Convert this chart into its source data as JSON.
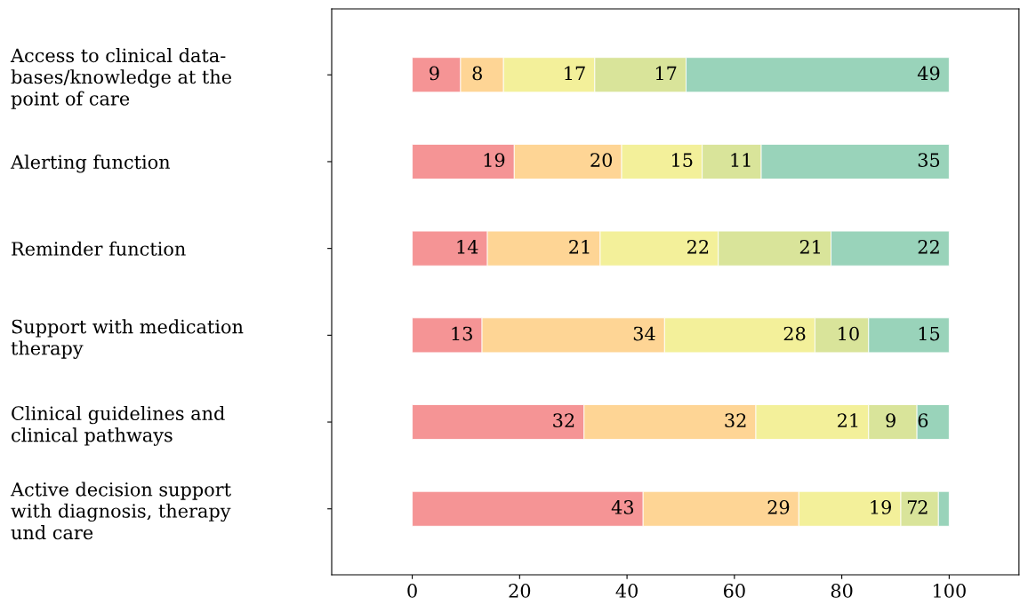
{
  "chart_data": {
    "type": "bar",
    "orientation": "horizontal",
    "stacked": true,
    "data_labels": true,
    "grid": false,
    "categories": [
      "Access to clinical data-\nbases/knowledge at the\npoint of care",
      "Alerting function",
      "Reminder function",
      "Support with medication\ntherapy",
      "Clinical guidelines and\nclinical pathways",
      "Active decision support\nwith diagnosis, therapy\nund care"
    ],
    "series": [
      {
        "color": "#f59495",
        "values": [
          9,
          19,
          14,
          13,
          32,
          43
        ]
      },
      {
        "color": "#fed595",
        "values": [
          8,
          20,
          21,
          34,
          32,
          29
        ]
      },
      {
        "color": "#f3f09a",
        "values": [
          17,
          15,
          22,
          28,
          21,
          19
        ]
      },
      {
        "color": "#d9e49a",
        "values": [
          17,
          11,
          21,
          10,
          9,
          7
        ]
      },
      {
        "color": "#99d3ba",
        "values": [
          49,
          35,
          22,
          15,
          6,
          2
        ]
      }
    ],
    "xlim": [
      -15,
      113
    ],
    "xticks": [
      0,
      20,
      40,
      60,
      80,
      100
    ]
  }
}
